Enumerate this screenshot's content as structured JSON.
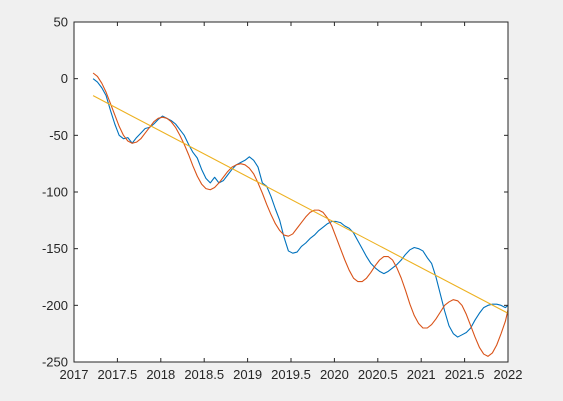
{
  "colors": {
    "figure_bg": "#f0f0f0",
    "axes_bg": "#ffffff",
    "axis": "#262626",
    "series": [
      "#0072bd",
      "#d95319",
      "#edb120"
    ]
  },
  "chart_data": {
    "type": "line",
    "title": "",
    "xlabel": "",
    "ylabel": "",
    "xlim": [
      2017,
      2022
    ],
    "ylim": [
      -250,
      50
    ],
    "xticks": [
      2017,
      2017.5,
      2018,
      2018.5,
      2019,
      2019.5,
      2020,
      2020.5,
      2021,
      2021.5,
      2022
    ],
    "xtick_labels": [
      "2017",
      "2017.5",
      "2018",
      "2018.5",
      "2019",
      "2019.5",
      "2020",
      "2020.5",
      "2021",
      "2021.5",
      "2022"
    ],
    "yticks": [
      50,
      0,
      -50,
      -100,
      -150,
      -200,
      -250
    ],
    "ytick_labels": [
      "50",
      "0",
      "-50",
      "-100",
      "-150",
      "-200",
      "-250"
    ],
    "grid": false,
    "legend": null,
    "series": [
      {
        "color": "#0072bd",
        "x": [
          2017.22,
          2017.27,
          2017.32,
          2017.37,
          2017.42,
          2017.47,
          2017.52,
          2017.57,
          2017.62,
          2017.67,
          2017.72,
          2017.77,
          2017.82,
          2017.87,
          2017.92,
          2017.97,
          2018.02,
          2018.07,
          2018.12,
          2018.17,
          2018.22,
          2018.27,
          2018.32,
          2018.37,
          2018.42,
          2018.47,
          2018.52,
          2018.57,
          2018.62,
          2018.67,
          2018.72,
          2018.77,
          2018.82,
          2018.87,
          2018.92,
          2018.97,
          2019.02,
          2019.07,
          2019.12,
          2019.17,
          2019.22,
          2019.27,
          2019.32,
          2019.37,
          2019.42,
          2019.47,
          2019.52,
          2019.57,
          2019.62,
          2019.67,
          2019.72,
          2019.77,
          2019.82,
          2019.87,
          2019.92,
          2019.97,
          2020.02,
          2020.07,
          2020.12,
          2020.17,
          2020.22,
          2020.27,
          2020.32,
          2020.37,
          2020.42,
          2020.47,
          2020.52,
          2020.57,
          2020.62,
          2020.67,
          2020.72,
          2020.77,
          2020.82,
          2020.87,
          2020.92,
          2020.97,
          2021.02,
          2021.07,
          2021.12,
          2021.17,
          2021.22,
          2021.27,
          2021.32,
          2021.37,
          2021.42,
          2021.47,
          2021.52,
          2021.57,
          2021.62,
          2021.67,
          2021.72,
          2021.77,
          2021.82,
          2021.87,
          2021.92,
          2021.97,
          2022.0
        ],
        "y": [
          0,
          -3,
          -8,
          -15,
          -28,
          -40,
          -50,
          -53,
          -52,
          -57,
          -52,
          -48,
          -44,
          -43,
          -40,
          -36,
          -33,
          -35,
          -37,
          -40,
          -45,
          -50,
          -58,
          -65,
          -70,
          -80,
          -88,
          -92,
          -87,
          -92,
          -90,
          -85,
          -80,
          -76,
          -74,
          -72,
          -69,
          -72,
          -78,
          -92,
          -95,
          -104,
          -115,
          -125,
          -140,
          -152,
          -154,
          -153,
          -148,
          -145,
          -141,
          -138,
          -134,
          -131,
          -128,
          -126,
          -126,
          -127,
          -130,
          -132,
          -136,
          -143,
          -150,
          -157,
          -163,
          -167,
          -170,
          -172,
          -170,
          -167,
          -164,
          -160,
          -155,
          -151,
          -149,
          -150,
          -152,
          -158,
          -163,
          -175,
          -190,
          -205,
          -218,
          -225,
          -228,
          -226,
          -224,
          -220,
          -213,
          -207,
          -202,
          -200,
          -199,
          -199,
          -200,
          -202,
          -200
        ]
      },
      {
        "color": "#d95319",
        "x": [
          2017.22,
          2017.27,
          2017.32,
          2017.37,
          2017.42,
          2017.47,
          2017.52,
          2017.57,
          2017.62,
          2017.67,
          2017.72,
          2017.77,
          2017.82,
          2017.87,
          2017.92,
          2017.97,
          2018.02,
          2018.07,
          2018.12,
          2018.17,
          2018.22,
          2018.27,
          2018.32,
          2018.37,
          2018.42,
          2018.47,
          2018.52,
          2018.57,
          2018.62,
          2018.67,
          2018.72,
          2018.77,
          2018.82,
          2018.87,
          2018.92,
          2018.97,
          2019.02,
          2019.07,
          2019.12,
          2019.17,
          2019.22,
          2019.27,
          2019.32,
          2019.37,
          2019.42,
          2019.47,
          2019.52,
          2019.57,
          2019.62,
          2019.67,
          2019.72,
          2019.77,
          2019.82,
          2019.87,
          2019.92,
          2019.97,
          2020.02,
          2020.07,
          2020.12,
          2020.17,
          2020.22,
          2020.27,
          2020.32,
          2020.37,
          2020.42,
          2020.47,
          2020.52,
          2020.57,
          2020.62,
          2020.67,
          2020.72,
          2020.77,
          2020.82,
          2020.87,
          2020.92,
          2020.97,
          2021.02,
          2021.07,
          2021.12,
          2021.17,
          2021.22,
          2021.27,
          2021.32,
          2021.37,
          2021.42,
          2021.47,
          2021.52,
          2021.57,
          2021.62,
          2021.67,
          2021.72,
          2021.77,
          2021.82,
          2021.87,
          2021.92,
          2021.97,
          2022.0
        ],
        "y": [
          5,
          2,
          -4,
          -12,
          -22,
          -32,
          -42,
          -50,
          -55,
          -57,
          -56,
          -53,
          -48,
          -43,
          -38,
          -35,
          -34,
          -35,
          -38,
          -43,
          -50,
          -58,
          -67,
          -77,
          -86,
          -93,
          -97,
          -98,
          -96,
          -92,
          -87,
          -82,
          -78,
          -76,
          -75,
          -76,
          -79,
          -84,
          -92,
          -101,
          -111,
          -120,
          -128,
          -134,
          -138,
          -139,
          -137,
          -132,
          -127,
          -122,
          -118,
          -116,
          -116,
          -118,
          -123,
          -130,
          -140,
          -150,
          -160,
          -169,
          -176,
          -179,
          -179,
          -176,
          -171,
          -165,
          -160,
          -157,
          -157,
          -160,
          -167,
          -176,
          -187,
          -199,
          -209,
          -216,
          -220,
          -220,
          -217,
          -212,
          -206,
          -200,
          -197,
          -195,
          -196,
          -200,
          -208,
          -218,
          -228,
          -237,
          -243,
          -245,
          -242,
          -235,
          -225,
          -214,
          -204
        ]
      },
      {
        "color": "#edb120",
        "x": [
          2017.22,
          2022.0
        ],
        "y": [
          -15,
          -207
        ]
      }
    ]
  }
}
